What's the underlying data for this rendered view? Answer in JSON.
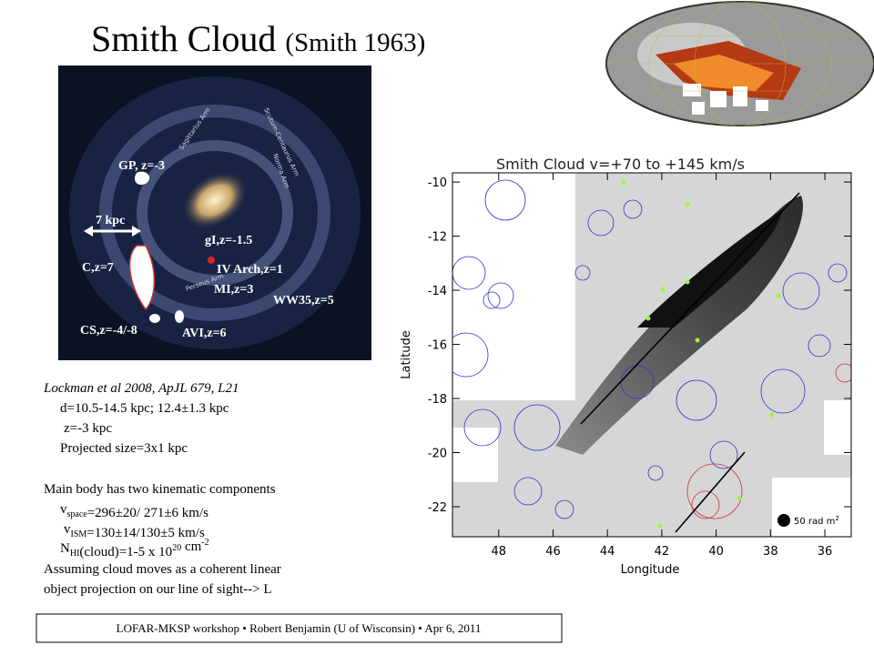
{
  "title": {
    "main": "Smith Cloud",
    "citation": "(Smith 1963)"
  },
  "galaxy_image": {
    "labels": [
      "GP, z=-3",
      "7 kpc",
      "C,z=7",
      "gI,z=-1.5",
      "IV Arch,z=1",
      "MI,z=3",
      "WW35,z=5",
      "CS,z=-4/-8",
      "AVI,z=6"
    ],
    "arm_labels": [
      "Scutum-Centaurus Arm",
      "Sagittarius Arm",
      "Norma Arm",
      "Perseus Arm"
    ]
  },
  "notes": [
    [
      "Lockman et al 2008, ApJL 679, L21"
    ],
    [
      "d=10.5-14.5 kpc; 12.4±1.3 kpc"
    ],
    [
      "z=-3 kpc"
    ],
    [
      "Projected size=3x1 kpc"
    ],
    [
      "Main body has two kinematic components"
    ],
    [
      "v",
      {
        "sub": "space"
      },
      "=296±20/ 271±6 km/s"
    ],
    [
      "v",
      {
        "sub": "ISM"
      },
      "=130±14/130±5 km/s"
    ],
    [
      "N",
      {
        "sub": "HI"
      },
      "(cloud)=1-5 x 10",
      {
        "sup": "20"
      },
      " cm",
      {
        "sup": "-2"
      }
    ],
    [
      "Assuming cloud moves as a coherent linear"
    ],
    [
      "object projection on our line of sight--> L"
    ]
  ],
  "plot": {
    "title": "Smith Cloud v=+70 to +145 km/s",
    "xlabel": "Longitude",
    "ylabel": "Latitude",
    "xlim": [
      49.7,
      35.03
    ],
    "ylim": [
      -23.11,
      -9.66
    ],
    "xticks": [
      48,
      46,
      44,
      42,
      40,
      38,
      36
    ],
    "yticks": [
      -10,
      -12,
      -14,
      -16,
      -18,
      -20,
      -22
    ],
    "legend": {
      "text": "50 rad m",
      "sup": "2"
    }
  },
  "footer": "LOFAR-MKSP workshop • Robert Benjamin (U of Wisconsin) • Apr 6, 2011"
}
